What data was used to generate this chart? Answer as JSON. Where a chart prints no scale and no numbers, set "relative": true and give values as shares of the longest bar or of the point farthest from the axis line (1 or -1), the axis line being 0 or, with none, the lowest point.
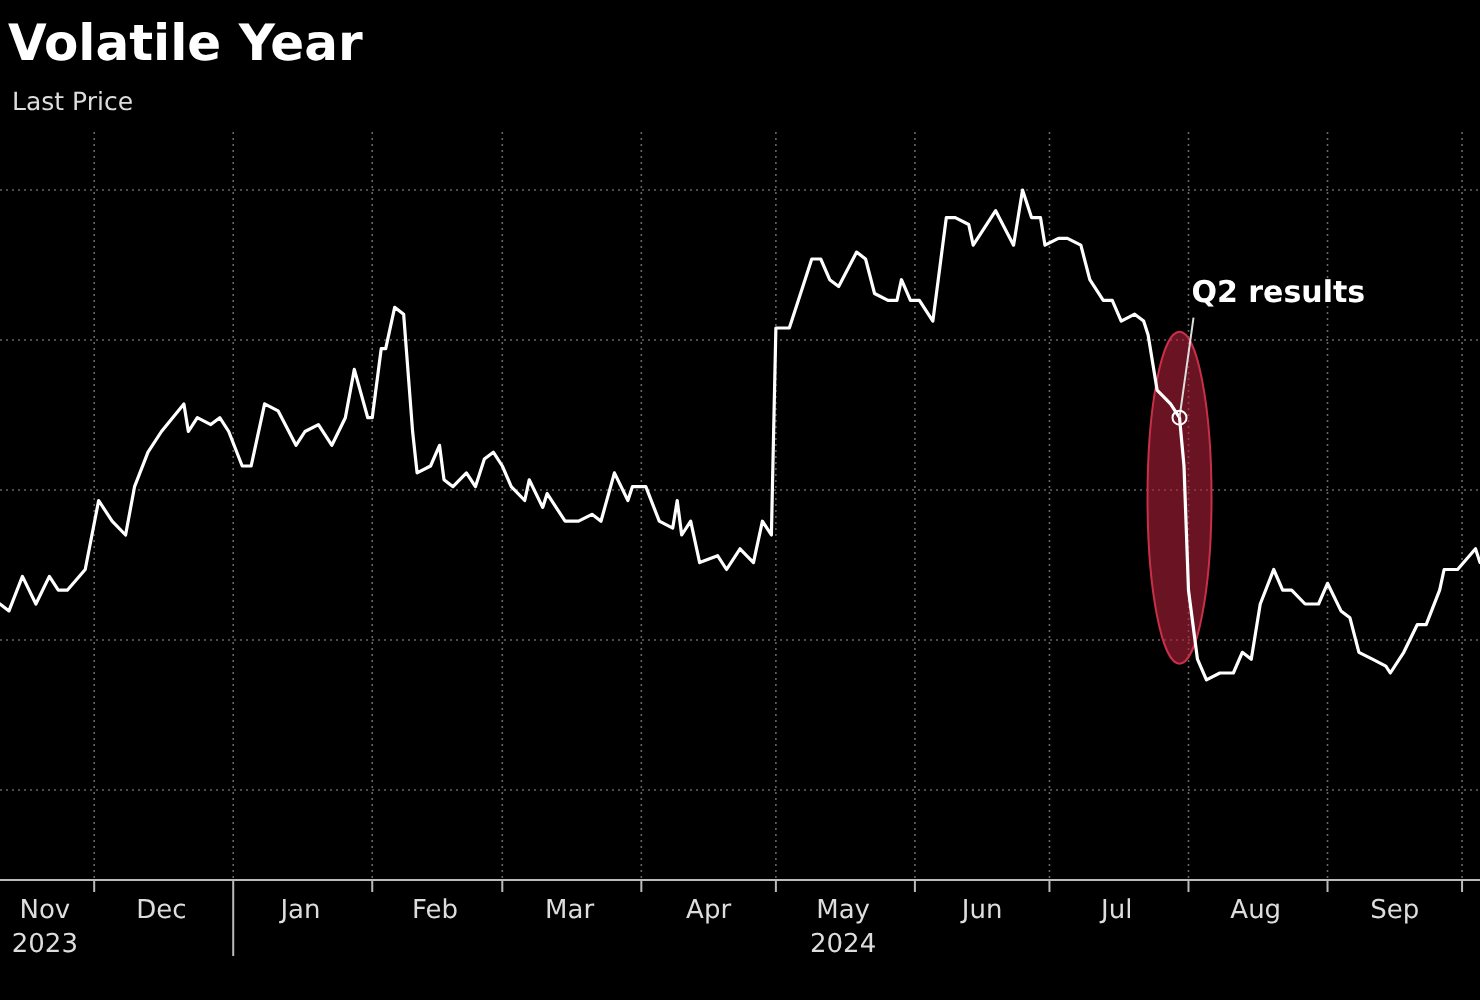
{
  "chart_data": {
    "type": "line",
    "title": "Volatile Year",
    "subtitle": "Last Price",
    "relative": true,
    "grid": true,
    "marker": "none",
    "line_style": "solid",
    "xlim": [
      "2023-11-10",
      "2024-10-05"
    ],
    "xticks": [
      {
        "value": "2023-11-20",
        "label": "Nov\n2023"
      },
      {
        "value": "2023-12-01",
        "label": null
      },
      {
        "value": "2023-12-16",
        "label": "Dec"
      },
      {
        "value": "2024-01-01",
        "label": null
      },
      {
        "value": "2024-01-16",
        "label": "Jan"
      },
      {
        "value": "2024-02-01",
        "label": null
      },
      {
        "value": "2024-02-15",
        "label": "Feb"
      },
      {
        "value": "2024-03-01",
        "label": null
      },
      {
        "value": "2024-03-16",
        "label": "Mar"
      },
      {
        "value": "2024-04-01",
        "label": null
      },
      {
        "value": "2024-04-16",
        "label": "Apr"
      },
      {
        "value": "2024-05-01",
        "label": null
      },
      {
        "value": "2024-05-16",
        "label": "May\n2024"
      },
      {
        "value": "2024-06-01",
        "label": null
      },
      {
        "value": "2024-06-16",
        "label": "Jun"
      },
      {
        "value": "2024-07-01",
        "label": null
      },
      {
        "value": "2024-07-16",
        "label": "Jul"
      },
      {
        "value": "2024-08-01",
        "label": null
      },
      {
        "value": "2024-08-16",
        "label": "Aug"
      },
      {
        "value": "2024-09-01",
        "label": null
      },
      {
        "value": "2024-09-16",
        "label": "Sep"
      },
      {
        "value": "2024-10-01",
        "label": null
      }
    ],
    "annotations": [
      {
        "text": "Q2 results",
        "x": "2024-07-30",
        "y": 0.67
      }
    ],
    "series": [
      {
        "color": "#ffffff",
        "x": [
          "2023-11-10",
          "2023-11-12",
          "2023-11-15",
          "2023-11-18",
          "2023-11-21",
          "2023-11-23",
          "2023-11-25",
          "2023-11-29",
          "2023-12-02",
          "2023-12-05",
          "2023-12-08",
          "2023-12-10",
          "2023-12-13",
          "2023-12-16",
          "2023-12-21",
          "2023-12-22",
          "2023-12-24",
          "2023-12-27",
          "2023-12-29",
          "2023-12-31",
          "2024-01-03",
          "2024-01-05",
          "2024-01-08",
          "2024-01-11",
          "2024-01-15",
          "2024-01-17",
          "2024-01-20",
          "2024-01-23",
          "2024-01-26",
          "2024-01-28",
          "2024-01-31",
          "2024-02-01",
          "2024-02-03",
          "2024-02-04",
          "2024-02-06",
          "2024-02-08",
          "2024-02-10",
          "2024-02-11",
          "2024-02-14",
          "2024-02-16",
          "2024-02-17",
          "2024-02-19",
          "2024-02-22",
          "2024-02-24",
          "2024-02-26",
          "2024-02-28",
          "2024-03-01",
          "2024-03-03",
          "2024-03-06",
          "2024-03-07",
          "2024-03-10",
          "2024-03-11",
          "2024-03-15",
          "2024-03-18",
          "2024-03-21",
          "2024-03-23",
          "2024-03-26",
          "2024-03-29",
          "2024-03-30",
          "2024-04-02",
          "2024-04-05",
          "2024-04-08",
          "2024-04-09",
          "2024-04-10",
          "2024-04-12",
          "2024-04-14",
          "2024-04-18",
          "2024-04-20",
          "2024-04-23",
          "2024-04-26",
          "2024-04-28",
          "2024-04-30",
          "2024-05-01",
          "2024-05-04",
          "2024-05-06",
          "2024-05-09",
          "2024-05-11",
          "2024-05-13",
          "2024-05-15",
          "2024-05-19",
          "2024-05-21",
          "2024-05-23",
          "2024-05-26",
          "2024-05-28",
          "2024-05-29",
          "2024-05-31",
          "2024-06-02",
          "2024-06-05",
          "2024-06-08",
          "2024-06-10",
          "2024-06-13",
          "2024-06-14",
          "2024-06-19",
          "2024-06-23",
          "2024-06-25",
          "2024-06-27",
          "2024-06-29",
          "2024-06-30",
          "2024-07-03",
          "2024-07-05",
          "2024-07-08",
          "2024-07-10",
          "2024-07-13",
          "2024-07-15",
          "2024-07-17",
          "2024-07-20",
          "2024-07-22",
          "2024-07-23",
          "2024-07-25",
          "2024-07-28",
          "2024-07-30",
          "2024-07-31",
          "2024-08-01",
          "2024-08-03",
          "2024-08-05",
          "2024-08-08",
          "2024-08-11",
          "2024-08-13",
          "2024-08-15",
          "2024-08-17",
          "2024-08-20",
          "2024-08-22",
          "2024-08-24",
          "2024-08-27",
          "2024-08-30",
          "2024-09-01",
          "2024-09-04",
          "2024-09-06",
          "2024-09-08",
          "2024-09-11",
          "2024-09-14",
          "2024-09-15",
          "2024-09-18",
          "2024-09-21",
          "2024-09-23",
          "2024-09-26",
          "2024-09-27",
          "2024-09-30",
          "2024-10-04",
          "2024-10-05"
        ],
        "values": [
          0.4,
          0.39,
          0.44,
          0.4,
          0.44,
          0.42,
          0.42,
          0.45,
          0.55,
          0.52,
          0.5,
          0.57,
          0.62,
          0.65,
          0.69,
          0.65,
          0.67,
          0.66,
          0.67,
          0.65,
          0.6,
          0.6,
          0.69,
          0.68,
          0.63,
          0.65,
          0.66,
          0.63,
          0.67,
          0.74,
          0.67,
          0.67,
          0.77,
          0.77,
          0.83,
          0.82,
          0.65,
          0.59,
          0.6,
          0.63,
          0.58,
          0.57,
          0.59,
          0.57,
          0.61,
          0.62,
          0.6,
          0.57,
          0.55,
          0.58,
          0.54,
          0.56,
          0.52,
          0.52,
          0.53,
          0.52,
          0.59,
          0.55,
          0.57,
          0.57,
          0.52,
          0.51,
          0.55,
          0.5,
          0.52,
          0.46,
          0.47,
          0.45,
          0.48,
          0.46,
          0.52,
          0.5,
          0.8,
          0.8,
          0.84,
          0.9,
          0.9,
          0.87,
          0.86,
          0.91,
          0.9,
          0.85,
          0.84,
          0.84,
          0.87,
          0.84,
          0.84,
          0.81,
          0.96,
          0.96,
          0.95,
          0.92,
          0.97,
          0.92,
          1.0,
          0.96,
          0.96,
          0.92,
          0.93,
          0.93,
          0.92,
          0.87,
          0.84,
          0.84,
          0.81,
          0.82,
          0.81,
          0.79,
          0.71,
          0.69,
          0.67,
          0.6,
          0.42,
          0.32,
          0.29,
          0.3,
          0.3,
          0.33,
          0.32,
          0.4,
          0.45,
          0.42,
          0.42,
          0.4,
          0.4,
          0.43,
          0.39,
          0.38,
          0.33,
          0.32,
          0.31,
          0.3,
          0.33,
          0.37,
          0.37,
          0.42,
          0.45,
          0.45,
          0.48,
          0.46
        ]
      }
    ]
  }
}
